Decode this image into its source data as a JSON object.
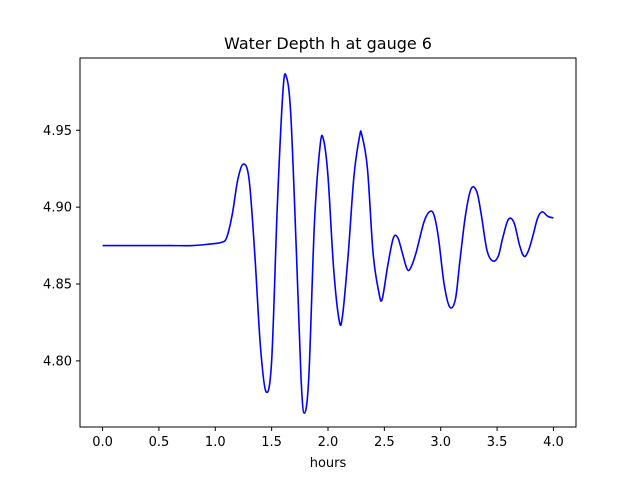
{
  "chart_data": {
    "type": "line",
    "title": "Water Depth h at gauge 6",
    "xlabel": "hours",
    "ylabel": "",
    "xlim": [
      -0.2,
      4.2
    ],
    "ylim": [
      4.757,
      4.997
    ],
    "xticks": [
      0.0,
      0.5,
      1.0,
      1.5,
      2.0,
      2.5,
      3.0,
      3.5,
      4.0
    ],
    "xtick_labels": [
      "0.0",
      "0.5",
      "1.0",
      "1.5",
      "2.0",
      "2.5",
      "3.0",
      "3.5",
      "4.0"
    ],
    "yticks": [
      4.8,
      4.85,
      4.9,
      4.95
    ],
    "ytick_labels": [
      "4.80",
      "4.85",
      "4.90",
      "4.95"
    ],
    "grid": false,
    "legend": "none",
    "series": [
      {
        "color": "#0000ff",
        "x": [
          0.0,
          0.2,
          0.4,
          0.6,
          0.8,
          0.95,
          1.05,
          1.1,
          1.15,
          1.2,
          1.25,
          1.3,
          1.35,
          1.4,
          1.45,
          1.5,
          1.55,
          1.6,
          1.63,
          1.67,
          1.72,
          1.76,
          1.79,
          1.83,
          1.88,
          1.93,
          1.96,
          2.0,
          2.05,
          2.1,
          2.13,
          2.18,
          2.23,
          2.28,
          2.3,
          2.35,
          2.4,
          2.45,
          2.48,
          2.53,
          2.58,
          2.62,
          2.66,
          2.7,
          2.73,
          2.78,
          2.85,
          2.9,
          2.94,
          2.98,
          3.03,
          3.08,
          3.13,
          3.17,
          3.22,
          3.27,
          3.32,
          3.36,
          3.41,
          3.46,
          3.51,
          3.55,
          3.6,
          3.65,
          3.7,
          3.74,
          3.78,
          3.82,
          3.86,
          3.9,
          3.95,
          4.0
        ],
        "y": [
          4.875,
          4.875,
          4.875,
          4.875,
          4.875,
          4.876,
          4.877,
          4.88,
          4.895,
          4.918,
          4.928,
          4.918,
          4.87,
          4.81,
          4.78,
          4.8,
          4.9,
          4.975,
          4.985,
          4.96,
          4.87,
          4.79,
          4.766,
          4.79,
          4.89,
          4.94,
          4.944,
          4.92,
          4.86,
          4.826,
          4.83,
          4.87,
          4.92,
          4.946,
          4.947,
          4.925,
          4.87,
          4.845,
          4.84,
          4.862,
          4.88,
          4.88,
          4.87,
          4.86,
          4.86,
          4.87,
          4.89,
          4.897,
          4.895,
          4.88,
          4.85,
          4.835,
          4.84,
          4.865,
          4.895,
          4.912,
          4.91,
          4.895,
          4.872,
          4.865,
          4.868,
          4.88,
          4.892,
          4.89,
          4.875,
          4.868,
          4.872,
          4.882,
          4.893,
          4.897,
          4.894,
          4.893
        ]
      }
    ]
  }
}
